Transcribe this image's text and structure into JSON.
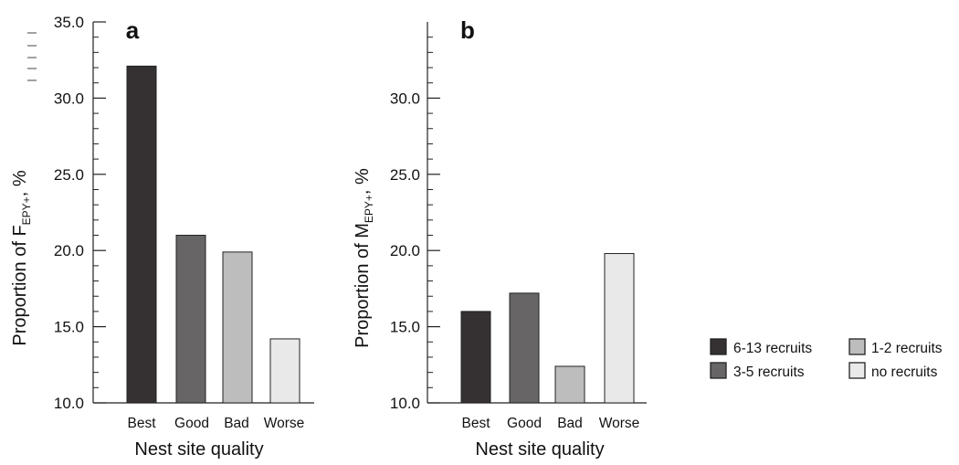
{
  "chart_data": [
    {
      "panel": "a",
      "type": "bar",
      "categories": [
        "Best",
        "Good",
        "Bad",
        "Worse"
      ],
      "values": [
        32.1,
        21.0,
        19.9,
        14.2
      ],
      "colors": [
        "#353132",
        "#686566",
        "#bdbdbd",
        "#e9e9e9"
      ],
      "xlabel": "Nest site quality",
      "ylabel_main": "Proportion of F",
      "ylabel_sub": "EPY+",
      "ylabel_tail": ", %",
      "ylim": [
        10,
        35
      ],
      "yticks": [
        "10.0",
        "15.0",
        "20.0",
        "25.0",
        "30.0",
        "35.0"
      ]
    },
    {
      "panel": "b",
      "type": "bar",
      "categories": [
        "Best",
        "Good",
        "Bad",
        "Worse"
      ],
      "values": [
        16.0,
        17.2,
        12.4,
        19.8
      ],
      "colors": [
        "#353132",
        "#686566",
        "#bdbdbd",
        "#e9e9e9"
      ],
      "xlabel": "Nest site quality",
      "ylabel_main": "Proportion of M",
      "ylabel_sub": "EPY+",
      "ylabel_tail": ", %",
      "ylim": [
        10,
        35
      ],
      "yticks": [
        "10.0",
        "15.0",
        "20.0",
        "25.0",
        "30.0"
      ]
    }
  ],
  "legend": [
    {
      "label": "6-13 recruits",
      "color": "#353132"
    },
    {
      "label": "1-2 recruits",
      "color": "#bdbdbd"
    },
    {
      "label": "3-5 recruits",
      "color": "#686566"
    },
    {
      "label": "no recruits",
      "color": "#e9e9e9"
    }
  ]
}
